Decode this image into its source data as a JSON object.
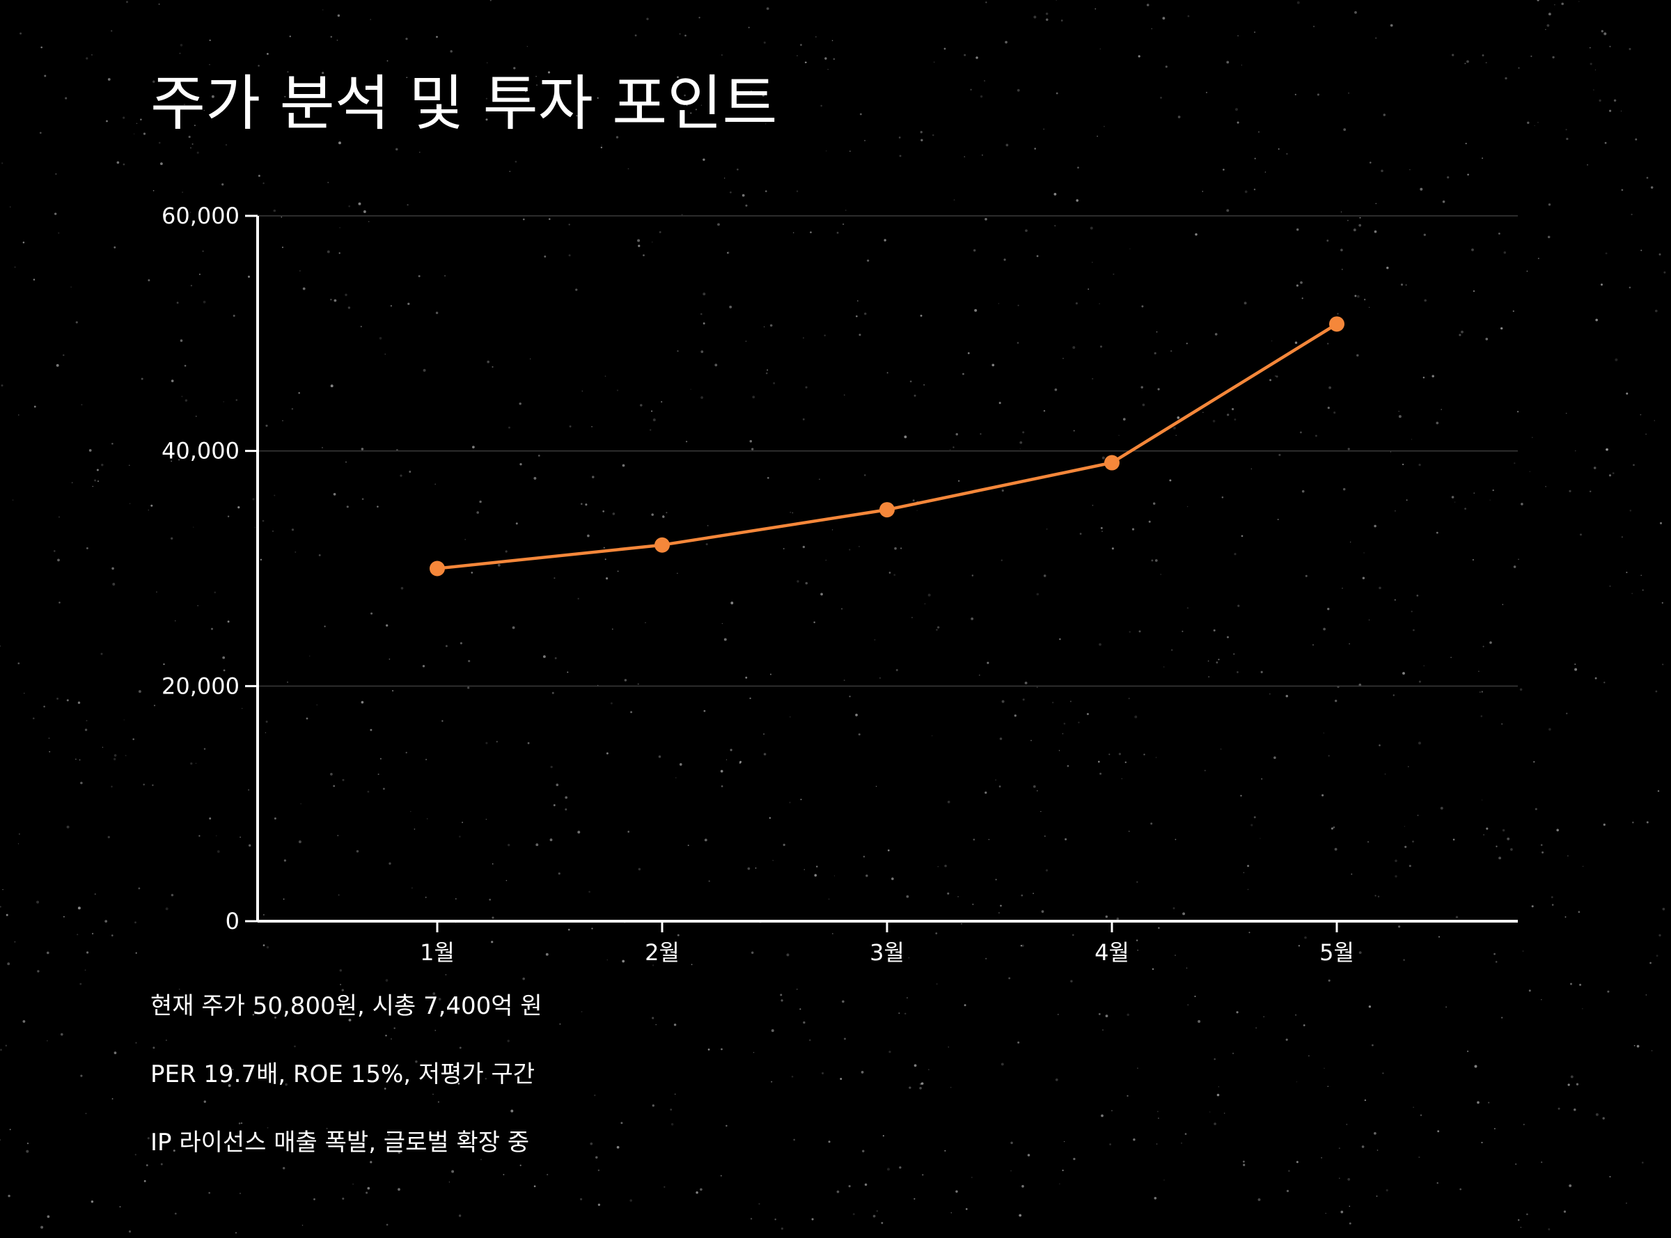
{
  "title": "주가 분석 및 투자 포인트",
  "colors": {
    "background": "#000000",
    "line": "#f5873a",
    "axis": "#ffffff",
    "grid": "#3a3a3a",
    "text": "#ffffff"
  },
  "chart_data": {
    "type": "line",
    "categories": [
      "1월",
      "2월",
      "3월",
      "4월",
      "5월"
    ],
    "series": [
      {
        "values": [
          30000,
          32000,
          35000,
          39000,
          50800
        ]
      }
    ],
    "ylim": [
      0,
      60000
    ],
    "yticks": [
      0,
      20000,
      40000,
      60000
    ],
    "ytick_labels": [
      "0",
      "20,000",
      "40,000",
      "60,000"
    ],
    "grid": true,
    "xlabel": "",
    "ylabel": ""
  },
  "notes": [
    "현재 주가 50,800원, 시총 7,400억 원",
    "PER 19.7배, ROE 15%, 저평가 구간",
    "IP 라이선스 매출 폭발, 글로벌 확장 중"
  ]
}
